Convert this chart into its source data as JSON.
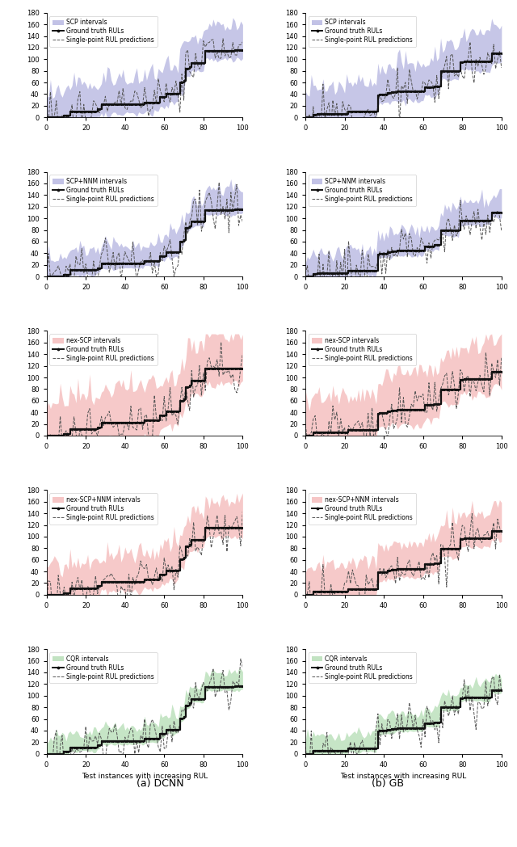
{
  "n_cols": 2,
  "n_rows": 5,
  "col_labels": [
    "(a) DCNN",
    "(b) GB"
  ],
  "xlabel": "Test instances with increasing RUL",
  "xlim": [
    0,
    100
  ],
  "ylim": [
    0,
    180
  ],
  "yticks": [
    0,
    20,
    40,
    60,
    80,
    100,
    120,
    140,
    160,
    180
  ],
  "xticks": [
    0,
    20,
    40,
    60,
    80,
    100
  ],
  "row_methods": [
    {
      "label": "SCP intervals",
      "fill_color": "#b3b3e0"
    },
    {
      "label": "SCP+NNM intervals",
      "fill_color": "#b3b3e0"
    },
    {
      "label": "nex-SCP intervals",
      "fill_color": "#f4b8b8"
    },
    {
      "label": "nex-SCP+NNM intervals",
      "fill_color": "#f4b8b8"
    },
    {
      "label": "CQR intervals",
      "fill_color": "#b3ddb3"
    }
  ],
  "gt_color": "#111111",
  "pred_color": "#555555",
  "gt_markersize": 2.5,
  "pred_linestyle": "--",
  "gt_linestyle": "-",
  "gt_linewidth": 1.6,
  "pred_linewidth": 0.7,
  "legend_fontsize": 5.5,
  "tick_fontsize": 6,
  "label_fontsize": 6.5,
  "col_label_fontsize": 9,
  "figsize": [
    6.4,
    10.48
  ],
  "dpi": 100,
  "n_points": 101
}
